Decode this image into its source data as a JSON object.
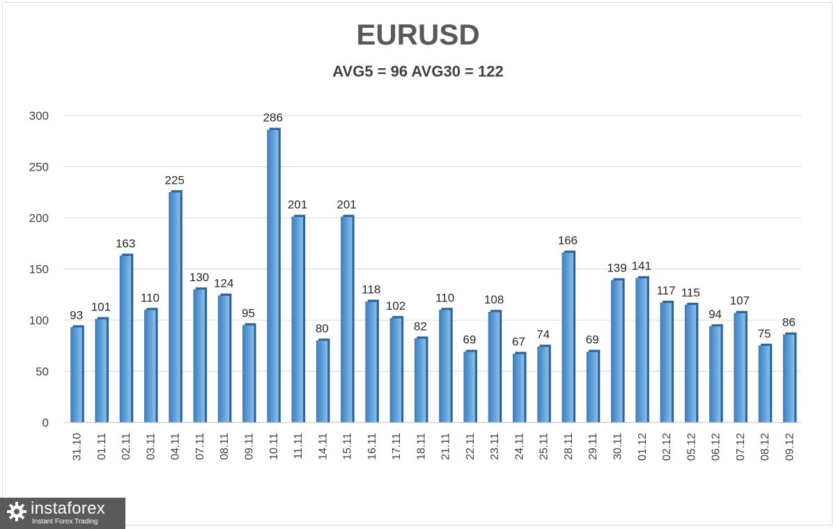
{
  "chart_data": {
    "type": "bar",
    "title": "EURUSD",
    "subtitle": "AVG5 = 96 AVG30 = 122",
    "categories": [
      "31.10",
      "01.11",
      "02.11",
      "03.11",
      "04.11",
      "07.11",
      "08.11",
      "09.11",
      "10.11",
      "11.11",
      "14.11",
      "15.11",
      "16.11",
      "17.11",
      "18.11",
      "21.11",
      "22.11",
      "23.11",
      "24.11",
      "25.11",
      "28.11",
      "29.11",
      "30.11",
      "01.12",
      "02.12",
      "05.12",
      "06.12",
      "07.12",
      "08.12",
      "09.12"
    ],
    "values": [
      93,
      101,
      163,
      110,
      225,
      130,
      124,
      95,
      286,
      201,
      80,
      201,
      118,
      102,
      82,
      110,
      69,
      108,
      67,
      74,
      166,
      69,
      139,
      141,
      117,
      115,
      94,
      107,
      75,
      86
    ],
    "ylim": [
      0,
      300
    ],
    "yticks": [
      0,
      50,
      100,
      150,
      200,
      250,
      300
    ],
    "grid": true,
    "bar_color": "#5b9bd5",
    "data_labels": true
  },
  "watermark": {
    "name": "instaforex",
    "tagline": "Instant Forex Trading",
    "bg_color": "#5a5a5a"
  }
}
